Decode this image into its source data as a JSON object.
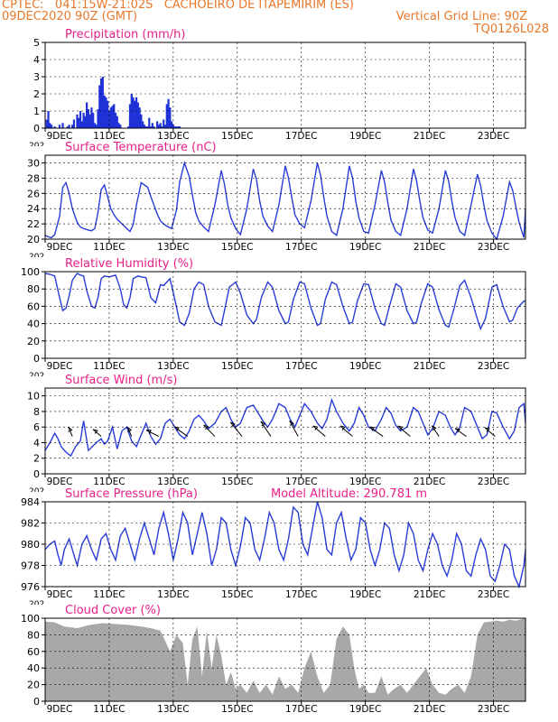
{
  "header": {
    "line1_left": "CPTEC:   041:15W-21:02S   CACHOEIRO DE ITAPEMIRIM (ES)",
    "line2_left": "09DEC2020 90Z (GMT)",
    "line2_right": "Vertical Grid Line: 90Z",
    "line3_right": "TQ0126L028"
  },
  "colors": {
    "header": "#e8782a",
    "title": "#e8208a",
    "line": "#2a3cd8",
    "bar": "#1e32d8",
    "cloud": "#a8a8a8"
  },
  "x_axis": {
    "range_days": [
      0,
      15
    ],
    "ticks": [
      {
        "day": 0,
        "label": "9DEC"
      },
      {
        "day": 2,
        "label": "11DEC"
      },
      {
        "day": 4,
        "label": "13DEC"
      },
      {
        "day": 6,
        "label": "15DEC"
      },
      {
        "day": 8,
        "label": "17DEC"
      },
      {
        "day": 10,
        "label": "19DEC"
      },
      {
        "day": 12,
        "label": "21DEC"
      },
      {
        "day": 14,
        "label": "23DEC"
      }
    ],
    "year_fragment": "202"
  },
  "chart_data": [
    {
      "id": "precip",
      "type": "bar",
      "title": "Precipitation (mm/h)",
      "ylim": [
        0,
        5
      ],
      "yticks": [
        0,
        1,
        2,
        3,
        4,
        5
      ],
      "x": [
        0.05,
        0.1,
        0.15,
        0.2,
        0.3,
        0.45,
        0.55,
        0.7,
        0.75,
        0.85,
        0.9,
        1.0,
        1.05,
        1.1,
        1.15,
        1.2,
        1.25,
        1.3,
        1.35,
        1.4,
        1.45,
        1.5,
        1.55,
        1.6,
        1.65,
        1.7,
        1.75,
        1.8,
        1.85,
        1.9,
        1.95,
        2.0,
        2.05,
        2.1,
        2.15,
        2.2,
        2.25,
        2.3,
        2.35,
        2.6,
        2.65,
        2.7,
        2.75,
        2.8,
        2.85,
        2.9,
        2.95,
        3.0,
        3.05,
        3.1,
        3.15,
        3.2,
        3.25,
        3.3,
        3.35,
        3.4,
        3.5,
        3.55,
        3.6,
        3.65,
        3.7,
        3.75,
        3.8,
        3.85,
        3.9,
        3.95,
        4.0,
        4.05,
        4.1,
        4.15,
        4.2
      ],
      "values": [
        0.5,
        1.0,
        0.3,
        0.2,
        0.1,
        0.2,
        0.3,
        0.1,
        0.2,
        0.2,
        0.5,
        0.8,
        0.6,
        1.0,
        0.4,
        0.9,
        0.7,
        1.5,
        1.1,
        0.8,
        1.2,
        0.9,
        0.3,
        0.2,
        1.1,
        2.5,
        2.9,
        3.0,
        1.9,
        1.8,
        1.6,
        1.0,
        1.2,
        1.3,
        1.4,
        0.9,
        0.7,
        0.3,
        0.2,
        0.1,
        1.4,
        2.0,
        1.8,
        1.6,
        1.8,
        1.5,
        1.2,
        0.8,
        0.4,
        0.2,
        0.1,
        0.1,
        0.6,
        0.1,
        0.3,
        0.1,
        0.4,
        0.2,
        0.3,
        0.1,
        0.5,
        0.2,
        1.4,
        1.7,
        1.2,
        0.4,
        0.2,
        0.1,
        0.1,
        0.1,
        0.1
      ]
    },
    {
      "id": "temp",
      "type": "line",
      "title": "Surface Temperature (nC)",
      "ylim": [
        20,
        31
      ],
      "yticks": [
        20,
        22,
        24,
        26,
        28,
        30
      ],
      "x": [
        0,
        0.1,
        0.2,
        0.3,
        0.45,
        0.55,
        0.65,
        0.75,
        0.85,
        1.0,
        1.1,
        1.2,
        1.35,
        1.45,
        1.55,
        1.65,
        1.75,
        1.85,
        1.95,
        2.05,
        2.15,
        2.25,
        2.35,
        2.45,
        2.55,
        2.65,
        2.75,
        2.85,
        3.0,
        3.2,
        3.35,
        3.5,
        3.6,
        3.7,
        3.8,
        3.95,
        4.1,
        4.2,
        4.35,
        4.5,
        4.6,
        4.7,
        4.8,
        4.95,
        5.1,
        5.3,
        5.5,
        5.6,
        5.7,
        5.8,
        5.95,
        6.1,
        6.3,
        6.5,
        6.6,
        6.7,
        6.8,
        6.95,
        7.1,
        7.3,
        7.5,
        7.6,
        7.7,
        7.8,
        7.95,
        8.1,
        8.3,
        8.5,
        8.6,
        8.7,
        8.8,
        8.95,
        9.1,
        9.3,
        9.5,
        9.6,
        9.7,
        9.8,
        9.95,
        10.1,
        10.3,
        10.5,
        10.6,
        10.7,
        10.8,
        10.95,
        11.1,
        11.3,
        11.5,
        11.6,
        11.7,
        11.8,
        11.95,
        12.1,
        12.3,
        12.5,
        12.6,
        12.7,
        12.8,
        12.95,
        13.1,
        13.3,
        13.5,
        13.6,
        13.7,
        13.8,
        13.95,
        14.1,
        14.3,
        14.5,
        14.6,
        14.7,
        14.8,
        14.95,
        15.0
      ],
      "values": [
        20.5,
        20.3,
        20.2,
        20.6,
        23.0,
        26.8,
        27.4,
        26.0,
        24.0,
        22.2,
        21.6,
        21.4,
        21.2,
        21.1,
        21.4,
        23.5,
        26.5,
        27.1,
        25.6,
        24.0,
        23.2,
        22.6,
        22.2,
        21.8,
        21.4,
        21.0,
        21.9,
        24.5,
        27.4,
        26.8,
        25.0,
        23.3,
        22.4,
        22.0,
        21.7,
        21.4,
        23.8,
        27.5,
        30.0,
        28.2,
        25.8,
        23.5,
        22.4,
        21.6,
        21.0,
        24.5,
        29.0,
        27.2,
        24.5,
        22.8,
        21.4,
        20.6,
        24.0,
        29.2,
        27.8,
        25.0,
        23.0,
        21.7,
        21.0,
        24.5,
        29.6,
        28.0,
        25.5,
        23.2,
        22.0,
        21.5,
        25.0,
        30.0,
        28.4,
        25.5,
        23.0,
        21.0,
        20.5,
        24.0,
        29.6,
        28.0,
        25.0,
        22.8,
        21.0,
        20.8,
        24.5,
        29.0,
        27.5,
        24.8,
        22.5,
        21.0,
        20.5,
        24.0,
        29.2,
        27.6,
        25.0,
        22.8,
        21.2,
        20.8,
        24.0,
        29.0,
        27.6,
        25.0,
        22.8,
        21.0,
        20.5,
        24.5,
        28.5,
        27.0,
        24.5,
        22.4,
        20.8,
        20.0,
        23.0,
        27.5,
        26.4,
        24.2,
        22.2,
        20.2,
        24.0
      ]
    },
    {
      "id": "rh",
      "type": "line",
      "title": "Relative Humidity (%)",
      "ylim": [
        0,
        100
      ],
      "yticks": [
        0,
        20,
        40,
        60,
        80,
        100
      ],
      "x": [
        0,
        0.15,
        0.3,
        0.45,
        0.55,
        0.65,
        0.75,
        0.85,
        1.0,
        1.1,
        1.2,
        1.3,
        1.45,
        1.55,
        1.65,
        1.75,
        1.85,
        2.0,
        2.1,
        2.2,
        2.35,
        2.45,
        2.55,
        2.65,
        2.75,
        2.9,
        3.0,
        3.15,
        3.3,
        3.45,
        3.6,
        3.7,
        3.8,
        3.9,
        4.05,
        4.2,
        4.35,
        4.5,
        4.65,
        4.8,
        4.95,
        5.1,
        5.3,
        5.5,
        5.6,
        5.75,
        5.95,
        6.1,
        6.3,
        6.5,
        6.6,
        6.75,
        6.95,
        7.1,
        7.3,
        7.5,
        7.6,
        7.75,
        7.95,
        8.1,
        8.3,
        8.5,
        8.6,
        8.75,
        8.95,
        9.1,
        9.3,
        9.5,
        9.6,
        9.75,
        9.95,
        10.1,
        10.3,
        10.5,
        10.6,
        10.75,
        10.95,
        11.1,
        11.3,
        11.5,
        11.6,
        11.75,
        11.95,
        12.1,
        12.3,
        12.5,
        12.6,
        12.75,
        12.95,
        13.1,
        13.3,
        13.5,
        13.6,
        13.75,
        13.95,
        14.1,
        14.3,
        14.5,
        14.6,
        14.75,
        14.95,
        15.0
      ],
      "values": [
        98,
        97,
        95,
        70,
        55,
        58,
        72,
        90,
        98,
        96,
        95,
        78,
        60,
        58,
        70,
        92,
        95,
        94,
        95,
        96,
        80,
        62,
        58,
        70,
        92,
        95,
        94,
        93,
        70,
        64,
        85,
        84,
        88,
        92,
        68,
        42,
        38,
        52,
        80,
        88,
        85,
        60,
        42,
        38,
        55,
        82,
        88,
        75,
        50,
        40,
        45,
        70,
        88,
        82,
        55,
        40,
        42,
        68,
        88,
        86,
        58,
        38,
        40,
        68,
        88,
        85,
        60,
        40,
        42,
        66,
        86,
        85,
        58,
        40,
        38,
        60,
        86,
        82,
        55,
        40,
        42,
        64,
        86,
        82,
        56,
        38,
        36,
        55,
        84,
        90,
        70,
        45,
        34,
        46,
        82,
        85,
        60,
        42,
        44,
        58,
        66,
        66
      ]
    },
    {
      "id": "wind",
      "type": "line",
      "title": "Surface Wind (m/s)",
      "ylim": [
        0,
        11
      ],
      "yticks": [
        0,
        2,
        4,
        6,
        8,
        10
      ],
      "x": [
        0,
        0.15,
        0.3,
        0.4,
        0.5,
        0.6,
        0.7,
        0.8,
        0.95,
        1.1,
        1.2,
        1.35,
        1.5,
        1.6,
        1.75,
        1.85,
        1.95,
        2.1,
        2.25,
        2.4,
        2.55,
        2.7,
        2.85,
        3.0,
        3.15,
        3.3,
        3.45,
        3.6,
        3.75,
        3.9,
        4.05,
        4.2,
        4.35,
        4.5,
        4.65,
        4.8,
        4.95,
        5.1,
        5.3,
        5.5,
        5.65,
        5.8,
        5.95,
        6.1,
        6.3,
        6.5,
        6.65,
        6.8,
        6.95,
        7.1,
        7.3,
        7.5,
        7.65,
        7.8,
        7.95,
        8.1,
        8.3,
        8.5,
        8.65,
        8.8,
        8.95,
        9.1,
        9.3,
        9.5,
        9.65,
        9.8,
        9.95,
        10.1,
        10.3,
        10.5,
        10.65,
        10.8,
        10.95,
        11.1,
        11.3,
        11.5,
        11.65,
        11.8,
        11.95,
        12.1,
        12.3,
        12.5,
        12.65,
        12.8,
        12.95,
        13.1,
        13.3,
        13.5,
        13.65,
        13.8,
        13.95,
        14.1,
        14.3,
        14.5,
        14.65,
        14.8,
        14.95,
        15.0
      ],
      "values": [
        3.0,
        4.0,
        5.2,
        4.5,
        3.5,
        3.0,
        2.6,
        2.3,
        3.5,
        4.2,
        6.8,
        3.0,
        3.6,
        4.0,
        4.5,
        3.8,
        4.2,
        6.0,
        3.2,
        5.5,
        6.0,
        4.2,
        3.5,
        5.0,
        6.5,
        4.8,
        3.8,
        4.5,
        6.5,
        7.0,
        6.0,
        5.0,
        4.5,
        5.5,
        7.0,
        7.5,
        6.8,
        5.8,
        6.5,
        8.0,
        8.5,
        7.0,
        6.0,
        6.5,
        8.5,
        8.8,
        7.8,
        6.8,
        6.0,
        7.0,
        9.0,
        8.5,
        7.0,
        6.0,
        7.5,
        9.0,
        8.0,
        6.5,
        5.8,
        7.0,
        9.5,
        8.0,
        6.5,
        5.5,
        6.5,
        8.5,
        7.5,
        6.0,
        5.5,
        7.0,
        8.5,
        7.8,
        6.2,
        5.5,
        6.0,
        8.5,
        8.0,
        6.5,
        5.0,
        5.8,
        8.0,
        7.5,
        6.0,
        5.0,
        6.0,
        8.5,
        8.0,
        6.0,
        4.5,
        5.0,
        8.0,
        7.8,
        6.0,
        4.5,
        5.5,
        8.5,
        9.0,
        6.5
      ],
      "barbs": [
        {
          "day": 0.85,
          "dir_deg": 200,
          "speed": 4
        },
        {
          "day": 1.75,
          "dir_deg": 225,
          "speed": 4
        },
        {
          "day": 2.7,
          "dir_deg": 200,
          "speed": 4
        },
        {
          "day": 3.55,
          "dir_deg": 240,
          "speed": 5
        },
        {
          "day": 4.45,
          "dir_deg": 230,
          "speed": 6
        },
        {
          "day": 5.3,
          "dir_deg": 220,
          "speed": 6
        },
        {
          "day": 6.15,
          "dir_deg": 215,
          "speed": 7
        },
        {
          "day": 7.05,
          "dir_deg": 210,
          "speed": 7
        },
        {
          "day": 7.9,
          "dir_deg": 205,
          "speed": 7
        },
        {
          "day": 8.75,
          "dir_deg": 225,
          "speed": 6
        },
        {
          "day": 9.6,
          "dir_deg": 225,
          "speed": 6
        },
        {
          "day": 10.55,
          "dir_deg": 230,
          "speed": 6
        },
        {
          "day": 11.4,
          "dir_deg": 225,
          "speed": 6
        },
        {
          "day": 12.3,
          "dir_deg": 210,
          "speed": 5
        },
        {
          "day": 13.15,
          "dir_deg": 230,
          "speed": 5
        },
        {
          "day": 14.05,
          "dir_deg": 225,
          "speed": 5
        }
      ]
    },
    {
      "id": "pres",
      "type": "line",
      "title": "Surface Pressure (hPa)",
      "annotation": "Model Altitude: 290.781 m",
      "ylim": [
        976,
        984
      ],
      "yticks": [
        976,
        978,
        980,
        982,
        984
      ],
      "x": [
        0,
        0.15,
        0.3,
        0.4,
        0.5,
        0.6,
        0.75,
        0.9,
        1.0,
        1.15,
        1.3,
        1.45,
        1.6,
        1.75,
        1.9,
        2.05,
        2.2,
        2.35,
        2.5,
        2.65,
        2.8,
        2.95,
        3.1,
        3.25,
        3.4,
        3.55,
        3.7,
        3.85,
        4.0,
        4.15,
        4.3,
        4.45,
        4.6,
        4.75,
        4.9,
        5.05,
        5.2,
        5.35,
        5.5,
        5.65,
        5.8,
        5.95,
        6.1,
        6.25,
        6.4,
        6.55,
        6.7,
        6.85,
        7.0,
        7.15,
        7.3,
        7.45,
        7.6,
        7.75,
        7.9,
        8.05,
        8.2,
        8.35,
        8.5,
        8.65,
        8.8,
        8.95,
        9.1,
        9.25,
        9.4,
        9.55,
        9.7,
        9.85,
        10.0,
        10.15,
        10.3,
        10.45,
        10.6,
        10.75,
        10.9,
        11.05,
        11.2,
        11.35,
        11.5,
        11.65,
        11.8,
        11.95,
        12.1,
        12.25,
        12.4,
        12.55,
        12.7,
        12.85,
        13.0,
        13.15,
        13.3,
        13.45,
        13.6,
        13.75,
        13.9,
        14.05,
        14.2,
        14.35,
        14.5,
        14.65,
        14.8,
        14.95,
        15.0
      ],
      "values": [
        979.5,
        980.0,
        980.3,
        979.0,
        978.0,
        979.5,
        980.5,
        979.0,
        978.0,
        980.0,
        980.8,
        979.5,
        978.5,
        980.5,
        981.0,
        979.5,
        978.5,
        980.8,
        981.5,
        980.0,
        978.5,
        980.5,
        982.0,
        980.5,
        979.0,
        981.5,
        983.0,
        981.0,
        978.5,
        980.5,
        983.0,
        982.0,
        979.0,
        981.0,
        983.0,
        981.0,
        978.0,
        979.5,
        982.5,
        982.0,
        979.5,
        978.0,
        979.8,
        982.5,
        982.0,
        979.5,
        978.5,
        980.5,
        983.0,
        982.0,
        979.5,
        978.5,
        980.5,
        983.5,
        983.0,
        980.0,
        979.0,
        981.5,
        984.0,
        982.5,
        979.5,
        979.0,
        982.0,
        983.0,
        980.5,
        978.5,
        979.5,
        982.5,
        982.0,
        979.5,
        978.0,
        979.5,
        982.0,
        981.5,
        979.0,
        977.5,
        979.0,
        982.0,
        981.0,
        978.5,
        977.5,
        979.5,
        981.0,
        980.0,
        978.0,
        977.0,
        978.5,
        981.0,
        980.0,
        977.5,
        977.0,
        979.0,
        980.5,
        979.5,
        977.0,
        976.5,
        978.0,
        980.0,
        979.5,
        977.0,
        976.0,
        978.0,
        979.5
      ]
    },
    {
      "id": "cloud",
      "type": "area",
      "title": "Cloud Cover (%)",
      "ylim": [
        0,
        100
      ],
      "yticks": [
        0,
        20,
        40,
        60,
        80,
        100
      ],
      "x": [
        0,
        0.3,
        0.6,
        1.0,
        1.4,
        1.8,
        2.2,
        2.6,
        3.0,
        3.3,
        3.6,
        3.9,
        4.1,
        4.3,
        4.45,
        4.6,
        4.75,
        4.9,
        5.05,
        5.2,
        5.35,
        5.5,
        5.65,
        5.8,
        5.95,
        6.1,
        6.3,
        6.5,
        6.7,
        6.9,
        7.1,
        7.3,
        7.5,
        7.7,
        7.9,
        8.1,
        8.3,
        8.5,
        8.7,
        8.9,
        9.1,
        9.3,
        9.5,
        9.65,
        9.8,
        9.95,
        10.1,
        10.3,
        10.5,
        10.7,
        10.9,
        11.1,
        11.3,
        11.5,
        11.7,
        11.9,
        12.1,
        12.3,
        12.5,
        12.7,
        12.9,
        13.1,
        13.3,
        13.5,
        13.7,
        13.9,
        14.1,
        14.3,
        14.5,
        14.7,
        14.9,
        15.0
      ],
      "values": [
        96,
        95,
        90,
        88,
        92,
        94,
        93,
        92,
        90,
        88,
        85,
        60,
        80,
        70,
        20,
        75,
        90,
        30,
        85,
        40,
        80,
        55,
        20,
        35,
        15,
        20,
        10,
        25,
        10,
        20,
        8,
        30,
        15,
        20,
        10,
        40,
        60,
        30,
        10,
        20,
        75,
        90,
        80,
        40,
        15,
        20,
        10,
        10,
        30,
        8,
        15,
        20,
        10,
        20,
        30,
        40,
        20,
        10,
        8,
        15,
        20,
        10,
        30,
        80,
        95,
        96,
        97,
        96,
        98,
        97,
        99,
        100
      ]
    }
  ]
}
